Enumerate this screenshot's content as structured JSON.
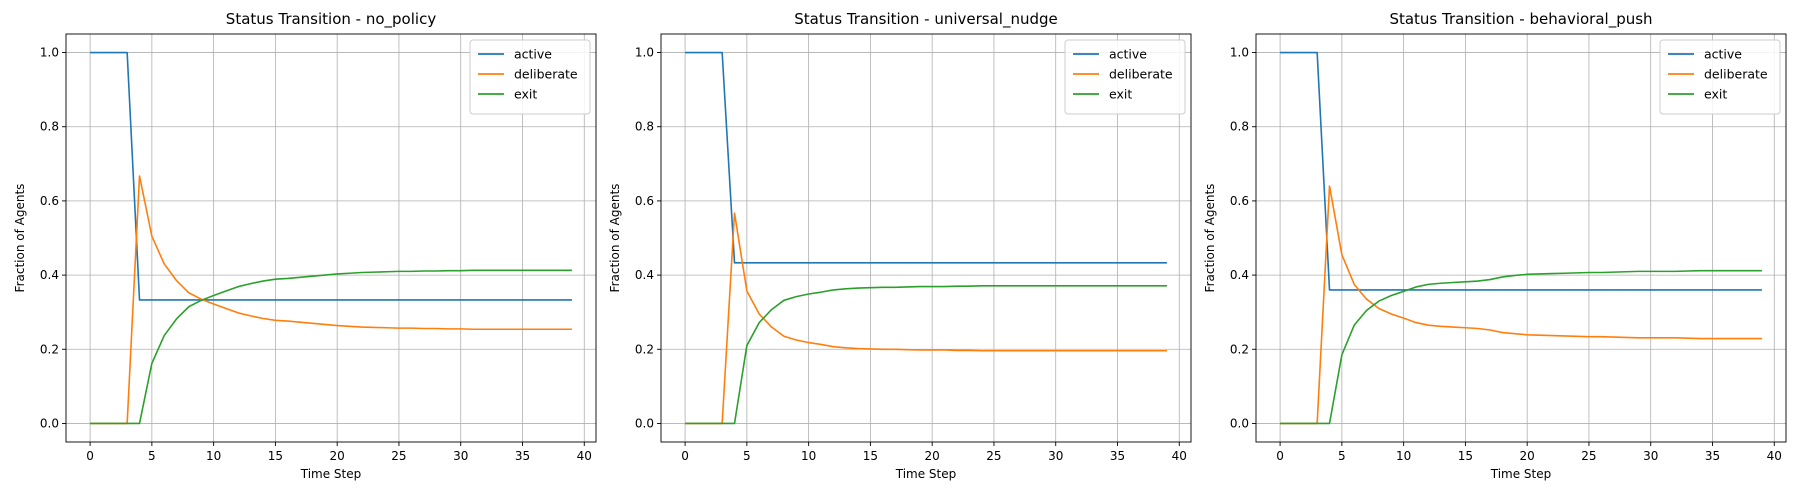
{
  "figure": {
    "width": 1800,
    "height": 500
  },
  "chart_data": [
    {
      "type": "line",
      "title": "Status Transition - no_policy",
      "xlabel": "Time Step",
      "ylabel": "Fraction of Agents",
      "xlim": [
        -1.95,
        40.95
      ],
      "ylim": [
        -0.05,
        1.05
      ],
      "xticks": [
        0,
        5,
        10,
        15,
        20,
        25,
        30,
        35,
        40
      ],
      "yticks": [
        0.0,
        0.2,
        0.4,
        0.6,
        0.8,
        1.0
      ],
      "grid": true,
      "legend": "top-right",
      "series": [
        {
          "name": "active",
          "color": "#1f77b4",
          "values": [
            1,
            1,
            1,
            1,
            0.333,
            0.333,
            0.333,
            0.333,
            0.333,
            0.333,
            0.333,
            0.333,
            0.333,
            0.333,
            0.333,
            0.333,
            0.333,
            0.333,
            0.333,
            0.333,
            0.333,
            0.333,
            0.333,
            0.333,
            0.333,
            0.333,
            0.333,
            0.333,
            0.333,
            0.333,
            0.333,
            0.333,
            0.333,
            0.333,
            0.333,
            0.333,
            0.333,
            0.333,
            0.333,
            0.333
          ]
        },
        {
          "name": "deliberate",
          "color": "#ff7f0e",
          "values": [
            0,
            0,
            0,
            0,
            0.667,
            0.505,
            0.43,
            0.385,
            0.352,
            0.335,
            0.322,
            0.31,
            0.298,
            0.29,
            0.283,
            0.278,
            0.276,
            0.273,
            0.27,
            0.267,
            0.264,
            0.262,
            0.26,
            0.259,
            0.258,
            0.257,
            0.257,
            0.256,
            0.256,
            0.255,
            0.255,
            0.254,
            0.254,
            0.254,
            0.254,
            0.254,
            0.254,
            0.254,
            0.254,
            0.254
          ]
        },
        {
          "name": "exit",
          "color": "#2ca02c",
          "values": [
            0,
            0,
            0,
            0,
            0,
            0.162,
            0.237,
            0.282,
            0.315,
            0.332,
            0.345,
            0.357,
            0.369,
            0.377,
            0.384,
            0.389,
            0.391,
            0.394,
            0.397,
            0.4,
            0.403,
            0.405,
            0.407,
            0.408,
            0.409,
            0.41,
            0.41,
            0.411,
            0.411,
            0.412,
            0.412,
            0.413,
            0.413,
            0.413,
            0.413,
            0.413,
            0.413,
            0.413,
            0.413,
            0.413
          ]
        }
      ]
    },
    {
      "type": "line",
      "title": "Status Transition - universal_nudge",
      "xlabel": "Time Step",
      "ylabel": "Fraction of Agents",
      "xlim": [
        -1.95,
        40.95
      ],
      "ylim": [
        -0.05,
        1.05
      ],
      "xticks": [
        0,
        5,
        10,
        15,
        20,
        25,
        30,
        35,
        40
      ],
      "yticks": [
        0.0,
        0.2,
        0.4,
        0.6,
        0.8,
        1.0
      ],
      "grid": true,
      "legend": "top-right",
      "series": [
        {
          "name": "active",
          "color": "#1f77b4",
          "values": [
            1,
            1,
            1,
            1,
            0.433,
            0.433,
            0.433,
            0.433,
            0.433,
            0.433,
            0.433,
            0.433,
            0.433,
            0.433,
            0.433,
            0.433,
            0.433,
            0.433,
            0.433,
            0.433,
            0.433,
            0.433,
            0.433,
            0.433,
            0.433,
            0.433,
            0.433,
            0.433,
            0.433,
            0.433,
            0.433,
            0.433,
            0.433,
            0.433,
            0.433,
            0.433,
            0.433,
            0.433,
            0.433,
            0.433
          ]
        },
        {
          "name": "deliberate",
          "color": "#ff7f0e",
          "values": [
            0,
            0,
            0,
            0,
            0.567,
            0.357,
            0.295,
            0.26,
            0.235,
            0.225,
            0.218,
            0.213,
            0.207,
            0.204,
            0.202,
            0.201,
            0.2,
            0.2,
            0.199,
            0.198,
            0.198,
            0.198,
            0.197,
            0.197,
            0.196,
            0.196,
            0.196,
            0.196,
            0.196,
            0.196,
            0.196,
            0.196,
            0.196,
            0.196,
            0.196,
            0.196,
            0.196,
            0.196,
            0.196,
            0.196
          ]
        },
        {
          "name": "exit",
          "color": "#2ca02c",
          "values": [
            0,
            0,
            0,
            0,
            0,
            0.21,
            0.272,
            0.307,
            0.332,
            0.342,
            0.349,
            0.354,
            0.36,
            0.363,
            0.365,
            0.366,
            0.367,
            0.367,
            0.368,
            0.369,
            0.369,
            0.369,
            0.37,
            0.37,
            0.371,
            0.371,
            0.371,
            0.371,
            0.371,
            0.371,
            0.371,
            0.371,
            0.371,
            0.371,
            0.371,
            0.371,
            0.371,
            0.371,
            0.371,
            0.371
          ]
        }
      ]
    },
    {
      "type": "line",
      "title": "Status Transition - behavioral_push",
      "xlabel": "Time Step",
      "ylabel": "Fraction of Agents",
      "xlim": [
        -1.95,
        40.95
      ],
      "ylim": [
        -0.05,
        1.05
      ],
      "xticks": [
        0,
        5,
        10,
        15,
        20,
        25,
        30,
        35,
        40
      ],
      "yticks": [
        0.0,
        0.2,
        0.4,
        0.6,
        0.8,
        1.0
      ],
      "grid": true,
      "legend": "top-right",
      "series": [
        {
          "name": "active",
          "color": "#1f77b4",
          "values": [
            1,
            1,
            1,
            1,
            0.36,
            0.36,
            0.36,
            0.36,
            0.36,
            0.36,
            0.36,
            0.36,
            0.36,
            0.36,
            0.36,
            0.36,
            0.36,
            0.36,
            0.36,
            0.36,
            0.36,
            0.36,
            0.36,
            0.36,
            0.36,
            0.36,
            0.36,
            0.36,
            0.36,
            0.36,
            0.36,
            0.36,
            0.36,
            0.36,
            0.36,
            0.36,
            0.36,
            0.36,
            0.36,
            0.36
          ]
        },
        {
          "name": "deliberate",
          "color": "#ff7f0e",
          "values": [
            0,
            0,
            0,
            0,
            0.64,
            0.455,
            0.375,
            0.335,
            0.31,
            0.295,
            0.284,
            0.272,
            0.265,
            0.262,
            0.26,
            0.258,
            0.256,
            0.252,
            0.245,
            0.242,
            0.239,
            0.238,
            0.237,
            0.236,
            0.235,
            0.234,
            0.234,
            0.233,
            0.232,
            0.231,
            0.231,
            0.231,
            0.231,
            0.23,
            0.229,
            0.229,
            0.229,
            0.229,
            0.229,
            0.229
          ]
        },
        {
          "name": "exit",
          "color": "#2ca02c",
          "values": [
            0,
            0,
            0,
            0,
            0,
            0.185,
            0.265,
            0.305,
            0.33,
            0.345,
            0.356,
            0.368,
            0.375,
            0.378,
            0.38,
            0.382,
            0.384,
            0.388,
            0.395,
            0.399,
            0.402,
            0.403,
            0.404,
            0.405,
            0.406,
            0.407,
            0.407,
            0.408,
            0.409,
            0.41,
            0.41,
            0.41,
            0.41,
            0.411,
            0.412,
            0.412,
            0.412,
            0.412,
            0.412,
            0.412
          ]
        }
      ]
    }
  ]
}
